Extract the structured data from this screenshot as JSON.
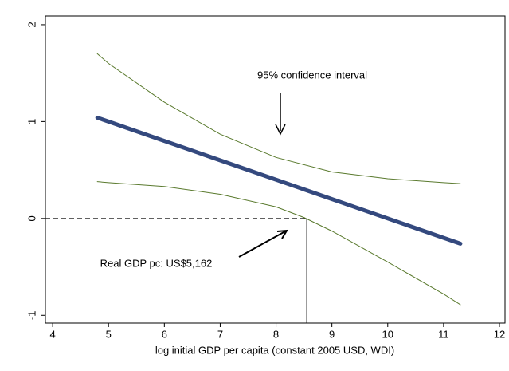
{
  "chart_data": {
    "type": "line",
    "xlabel": "log initial GDP per capita (constant 2005 USD, WDI)",
    "xlim": [
      3.87,
      12.1
    ],
    "xticks": [
      4,
      5,
      6,
      7,
      8,
      9,
      10,
      11,
      12
    ],
    "ylim": [
      -1.08,
      2.09
    ],
    "yticks": [
      -1,
      0,
      1,
      2
    ],
    "series": [
      {
        "color": "#34497e",
        "width": 5,
        "x": [
          4.8,
          11.3
        ],
        "values": [
          1.04,
          -0.26
        ]
      },
      {
        "color": "#5a7a2e",
        "width": 1,
        "x": [
          4.8,
          5,
          6,
          7,
          8,
          9,
          10,
          11,
          11.3
        ],
        "values": [
          1.7,
          1.6,
          1.2,
          0.87,
          0.63,
          0.48,
          0.41,
          0.37,
          0.36
        ]
      },
      {
        "color": "#5a7a2e",
        "width": 1,
        "x": [
          4.8,
          5,
          6,
          7,
          8,
          8.5,
          9,
          10,
          11,
          11.3
        ],
        "values": [
          0.38,
          0.37,
          0.33,
          0.25,
          0.12,
          0.01,
          -0.13,
          -0.45,
          -0.78,
          -0.89
        ]
      }
    ],
    "reference_y": 0,
    "reference_x": 8.55,
    "annotations": [
      "95% confidence interval",
      "Real GDP pc: US$5,162"
    ]
  }
}
